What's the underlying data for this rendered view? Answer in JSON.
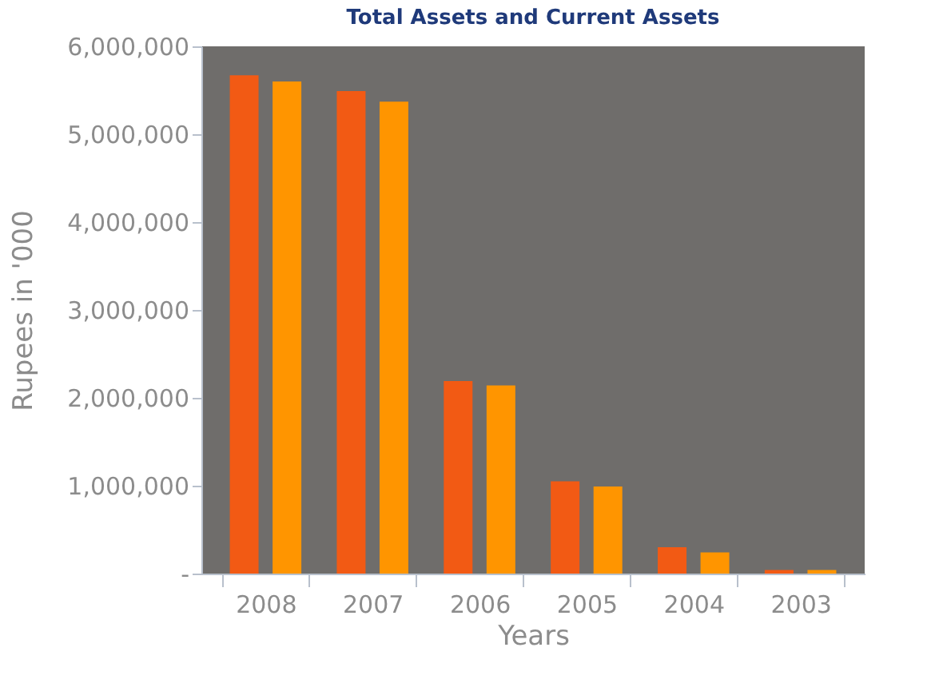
{
  "chart_data": {
    "type": "bar",
    "title": "Total Assets and Current Assets",
    "xlabel": "Years",
    "ylabel": "Rupees in '000",
    "categories": [
      "2008",
      "2007",
      "2006",
      "2005",
      "2004",
      "2003"
    ],
    "series": [
      {
        "color": "#f25a14",
        "values": [
          5670000,
          5490000,
          2190000,
          1050000,
          300000,
          40000
        ]
      },
      {
        "color": "#ff9500",
        "values": [
          5600000,
          5370000,
          2140000,
          990000,
          240000,
          40000
        ]
      }
    ],
    "ylim": [
      0,
      6000000
    ],
    "yticks": [
      {
        "value": 0,
        "label": "-"
      },
      {
        "value": 1000000,
        "label": "1,000,000"
      },
      {
        "value": 2000000,
        "label": "2,000,000"
      },
      {
        "value": 3000000,
        "label": "3,000,000"
      },
      {
        "value": 4000000,
        "label": "4,000,000"
      },
      {
        "value": 5000000,
        "label": "5,000,000"
      },
      {
        "value": 6000000,
        "label": "6,000,000"
      }
    ],
    "grid": false,
    "legend": false
  }
}
